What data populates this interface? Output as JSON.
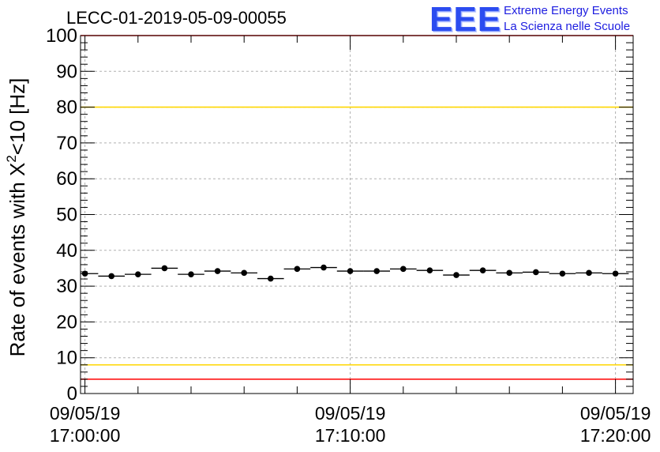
{
  "header": {
    "run_title": "LECC-01-2019-05-09-00055",
    "logo_mark": "EEE",
    "logo_line1": "Extreme Energy Events",
    "logo_line2": "La Scienza nelle Scuole"
  },
  "colors": {
    "limit_red": "#ff0000",
    "limit_yellow": "#ffd700",
    "points": "#000000",
    "logo_blue": "#2b4cf0"
  },
  "chart_data": {
    "type": "scatter",
    "title": "LECC-01-2019-05-09-00055",
    "ylabel": "Rate of events with X²<10 [Hz]",
    "ylabel_prefix": "Rate of events with X",
    "ylabel_sup": "2",
    "ylabel_suffix": "<10 [Hz]",
    "ylim": [
      0,
      100
    ],
    "yticks": [
      0,
      10,
      20,
      30,
      40,
      50,
      60,
      70,
      80,
      90,
      100
    ],
    "xlim": [
      "09/05/19 16:59:50",
      "09/05/19 17:20:40"
    ],
    "xticks": [
      {
        "date": "09/05/19",
        "time": "17:00:00",
        "t": "09/05/19 17:00:00"
      },
      {
        "date": "09/05/19",
        "time": "17:10:00",
        "t": "09/05/19 17:10:00"
      },
      {
        "date": "09/05/19",
        "time": "17:20:00",
        "t": "09/05/19 17:20:00"
      }
    ],
    "grid": true,
    "bin_width_s": 60,
    "series": [
      {
        "x": [
          "17:00:00",
          "17:01:00",
          "17:02:00",
          "17:03:00",
          "17:04:00",
          "17:05:00",
          "17:06:00",
          "17:07:00",
          "17:08:00",
          "17:09:00",
          "17:10:00",
          "17:11:00",
          "17:12:00",
          "17:13:00",
          "17:14:00",
          "17:15:00",
          "17:16:00",
          "17:17:00",
          "17:18:00",
          "17:19:00",
          "17:20:00"
        ],
        "y": [
          33.5,
          32.8,
          33.3,
          35.0,
          33.3,
          34.2,
          33.7,
          32.1,
          34.8,
          35.2,
          34.2,
          34.2,
          34.8,
          34.4,
          33.1,
          34.4,
          33.7,
          33.9,
          33.5,
          33.7,
          33.5
        ]
      }
    ],
    "reference_lines": [
      {
        "y": 80,
        "color": "#ffd700"
      },
      {
        "y": 8,
        "color": "#ffd700"
      },
      {
        "y": 100,
        "color": "#ff0000"
      },
      {
        "y": 4,
        "color": "#ff0000"
      }
    ]
  }
}
